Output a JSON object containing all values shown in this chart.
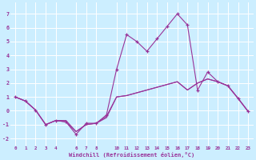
{
  "bg_color": "#cceeff",
  "grid_color": "#ffffff",
  "line_color": "#993399",
  "xlabel": "Windchill (Refroidissement éolien,°C)",
  "xlim": [
    -0.5,
    23.5
  ],
  "ylim": [
    -2.5,
    7.8
  ],
  "yticks": [
    -2,
    -1,
    0,
    1,
    2,
    3,
    4,
    5,
    6,
    7
  ],
  "xticks": [
    0,
    1,
    2,
    3,
    4,
    6,
    7,
    8,
    10,
    11,
    12,
    13,
    14,
    15,
    16,
    17,
    18,
    19,
    20,
    21,
    22,
    23
  ],
  "series_no_marker": [
    {
      "x": [
        0,
        1,
        2,
        3,
        4,
        5,
        6,
        7,
        8,
        9,
        10,
        11,
        12,
        13,
        14,
        15,
        16,
        17,
        18,
        19,
        20,
        21,
        22,
        23
      ],
      "y": [
        1.0,
        0.7,
        0.05,
        -1.0,
        -0.7,
        -0.8,
        -1.5,
        -1.0,
        -0.9,
        -0.5,
        1.0,
        1.1,
        1.3,
        1.5,
        1.7,
        1.9,
        2.1,
        1.5,
        2.0,
        2.3,
        2.1,
        1.8,
        0.9,
        -0.05
      ]
    },
    {
      "x": [
        0,
        1,
        2,
        3,
        4,
        5,
        6,
        7,
        8,
        9,
        10,
        11,
        12,
        13,
        14,
        15,
        16,
        17,
        18,
        19,
        20,
        21,
        22,
        23
      ],
      "y": [
        1.0,
        0.7,
        0.05,
        -1.0,
        -0.7,
        -0.7,
        -1.5,
        -1.0,
        -0.9,
        -0.4,
        1.0,
        1.1,
        1.3,
        1.5,
        1.7,
        1.9,
        2.1,
        1.5,
        2.0,
        2.3,
        2.1,
        1.8,
        0.9,
        -0.05
      ]
    }
  ],
  "series_marker": [
    {
      "x": [
        0,
        1,
        2,
        3,
        4,
        5,
        6,
        7,
        8,
        9,
        10,
        11,
        12,
        13,
        14,
        15,
        16,
        17,
        18,
        19,
        20,
        21,
        22,
        23
      ],
      "y": [
        1.0,
        0.7,
        0.05,
        -1.0,
        -0.7,
        -0.8,
        -1.7,
        -0.9,
        -0.9,
        -0.3,
        3.0,
        5.5,
        5.0,
        4.3,
        5.2,
        6.1,
        7.0,
        6.2,
        1.5,
        2.8,
        2.1,
        1.8,
        0.9,
        -0.05
      ]
    }
  ]
}
